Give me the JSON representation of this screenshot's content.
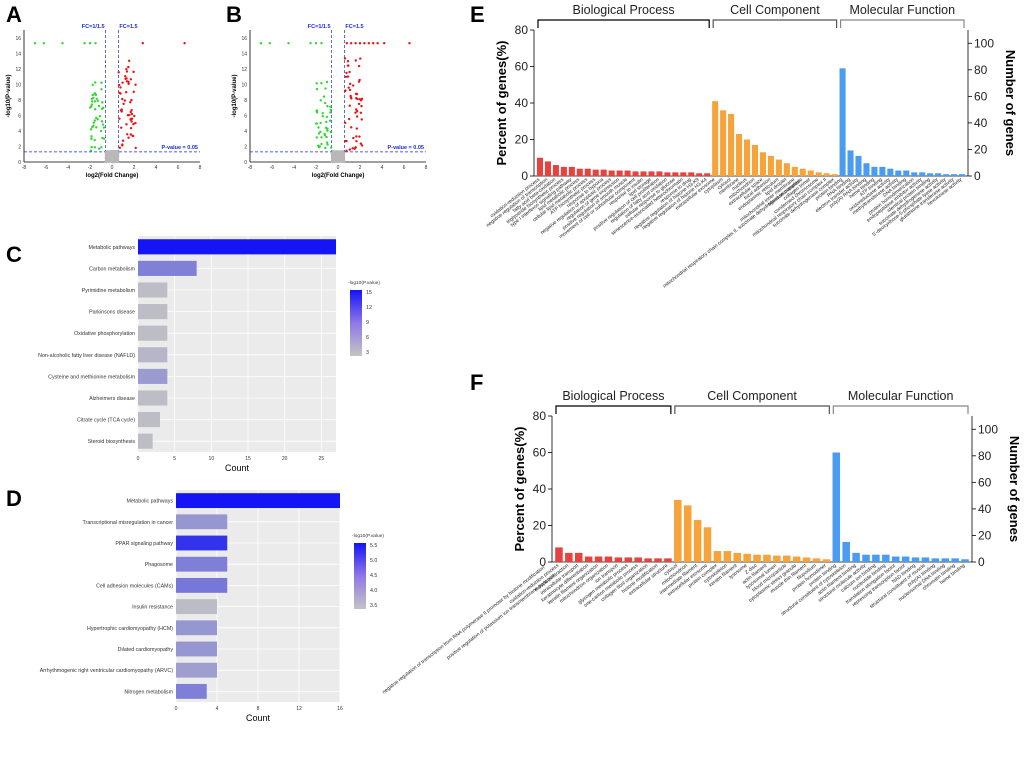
{
  "figure": {
    "panels": [
      "A",
      "B",
      "C",
      "D",
      "E",
      "F"
    ]
  },
  "chart_data": [
    {
      "panel": "A",
      "type": "scatter",
      "title": "",
      "xlabel": "log2(Fold Change)",
      "ylabel": "-log10(P-value)",
      "xlim": [
        -8,
        8
      ],
      "ylim": [
        0,
        17
      ],
      "xticks": [
        "-8",
        "-6",
        "-4",
        "-2",
        "0",
        "2",
        "4",
        "6",
        "8"
      ],
      "yticks": [
        "0",
        "2",
        "4",
        "6",
        "8",
        "10",
        "12",
        "14",
        "16"
      ],
      "fc_labels": [
        "FC=1/1.5",
        "FC=1.5"
      ],
      "fc_lines": [
        -0.585,
        0.585
      ],
      "pvalue_label": "P-value = 0.05",
      "pvalue_line": 1.3,
      "seed": 11
    },
    {
      "panel": "B",
      "type": "scatter",
      "title": "",
      "xlabel": "log2(Fold Change)",
      "ylabel": "-log10(P-value)",
      "xlim": [
        -8,
        8
      ],
      "ylim": [
        0,
        17
      ],
      "xticks": [
        "-8",
        "-6",
        "-4",
        "-2",
        "0",
        "2",
        "4",
        "6",
        "8"
      ],
      "yticks": [
        "0",
        "2",
        "4",
        "6",
        "8",
        "10",
        "12",
        "14",
        "16"
      ],
      "fc_labels": [
        "FC=1/1.5",
        "FC=1.5"
      ],
      "fc_lines": [
        -0.585,
        0.585
      ],
      "pvalue_label": "P-value = 0.05",
      "pvalue_line": 1.3,
      "seed": 29
    },
    {
      "panel": "C",
      "type": "bar",
      "orientation": "horizontal",
      "xlabel": "Count",
      "xlim": [
        0,
        27
      ],
      "xticks": [
        0,
        5,
        10,
        15,
        20,
        25
      ],
      "categories": [
        "Metabolic pathways",
        "Carbon metabolism",
        "Pyrimidine metabolism",
        "Parkinsons disease",
        "Oxidative phosphorylation",
        "Non-alcoholic fatty liver disease (NAFLD)",
        "Cysteine and methionine metabolism",
        "Alzheimers disease",
        "Citrate cycle (TCA cycle)",
        "Steroid biosynthesis"
      ],
      "values": [
        27,
        8,
        4,
        4,
        4,
        4,
        4,
        4,
        3,
        2
      ],
      "color_values": [
        16,
        8,
        3.5,
        3.5,
        3.5,
        4,
        6,
        3.5,
        3.5,
        3.5
      ],
      "legend_title": "-log10(P.value)",
      "legend_ticks": [
        "15",
        "12",
        "9",
        "6",
        "3"
      ],
      "legend_range": [
        3,
        16
      ]
    },
    {
      "panel": "D",
      "type": "bar",
      "orientation": "horizontal",
      "xlabel": "Count",
      "xlim": [
        0,
        16
      ],
      "xticks": [
        0,
        4,
        8,
        12,
        16
      ],
      "categories": [
        "Metabolic pathways",
        "Transcriptional misregulation in cancer",
        "PPAR signaling pathway",
        "Phagosome",
        "Cell adhesion molecules (CAMs)",
        "Insulin resistance",
        "Hypertrophic cardiomyopathy (HCM)",
        "Dilated cardiomyopathy",
        "Arrhythmogenic right ventricular cardiomyopathy (ARVC)",
        "Nitrogen metabolism"
      ],
      "values": [
        16,
        5,
        5,
        5,
        5,
        4,
        4,
        4,
        4,
        3
      ],
      "color_values": [
        5.6,
        3.9,
        5.2,
        4.2,
        4.3,
        3.4,
        3.9,
        3.9,
        3.8,
        4.2
      ],
      "legend_title": "-log10(P.value)",
      "legend_ticks": [
        "5.5",
        "5.0",
        "4.5",
        "4.0",
        "3.5"
      ],
      "legend_range": [
        3.3,
        5.6
      ]
    },
    {
      "panel": "E",
      "type": "bar",
      "ylabel": "Percent of genes(%)",
      "y2label": "Number of genes",
      "ylim": [
        0,
        80
      ],
      "y2lim": [
        0,
        110
      ],
      "yticks": [
        "0",
        "20",
        "40",
        "60",
        "80"
      ],
      "y2ticks": [
        "0",
        "20",
        "40",
        "60",
        "80",
        "100"
      ],
      "groups": [
        "Biological Process",
        "Cell Component",
        "Molecular Function"
      ],
      "group_colors": [
        "#e8423f",
        "#f5a33a",
        "#4a9cf0"
      ],
      "series": [
        {
          "name": "Biological Process",
          "categories": [
            "oxidation-reduction process",
            "negative regulation of transcription",
            "fatty acid beta-oxidation",
            "triglyceride biosynthetic process",
            "type I interferon signaling pathway",
            "lipid metabolic process",
            "cellular lipid metabolic process",
            "ATP biosynthetic process",
            "response to hypoxia",
            "negative regulation of apoptotic process",
            "regulation of gene expression",
            "positive regulation of smooth muscle",
            "movement of cell or subcellular component",
            "response to insulin",
            "lipid storage",
            "positive regulation of cell proliferation",
            "regulation of fatty acid oxidation",
            "cellular response to glucose",
            "senescence-associated heterochromatin",
            "response to drug",
            "negative regulation of histone H3-K9",
            "negative regulation of histone H3-K4"
          ],
          "values": [
            10,
            8,
            6,
            5,
            5,
            4,
            4,
            3.5,
            3.5,
            3,
            3,
            3,
            2.5,
            2.5,
            2.5,
            2.5,
            2,
            2,
            2,
            2,
            1.5,
            1.5
          ]
        },
        {
          "name": "Cell Component",
          "categories": [
            "extracellular exosome",
            "cytoplasm",
            "cytosol",
            "membrane",
            "nucleus",
            "mitochondrion",
            "extracellular space",
            "focal adhesion",
            "endoplasmic reticulum",
            "lipid droplet",
            "mitochondrial inner membrane",
            "blood microparticle",
            "collagen trimer",
            "condensed chromosome",
            "mitochondrial respiratory chain complex II",
            "succinate dehydrogenase complex"
          ],
          "values": [
            41,
            36,
            34,
            23,
            20,
            17,
            13,
            11,
            9,
            7,
            5,
            4,
            3,
            2,
            1.5,
            1
          ]
        },
        {
          "name": "Molecular Function",
          "categories": [
            "protein binding",
            "RNA binding",
            "electron transfer activity",
            "poly(A) RNA binding",
            "heme binding",
            "ATP binding",
            "oxidoreductase activity",
            "methyltransferase activity",
            "DNA binding",
            "protein homodimerization",
            "endopeptidase inhibitor activity",
            "identical protein binding",
            "succinate dehydrogenase activity",
            "5'-deoxyribose-5-phosphate lyase activity",
            "glutathione transferase activity",
            "hexokinase activity"
          ],
          "values": [
            59,
            14,
            11,
            7,
            5,
            5,
            4,
            3,
            3,
            2,
            2,
            1.5,
            1.5,
            1,
            1,
            1
          ]
        }
      ],
      "long_labels": [
        "mitochondrial respiratory chain complex II, succinate dehydrogenase complex"
      ]
    },
    {
      "panel": "F",
      "type": "bar",
      "ylabel": "Percent of genes(%)",
      "y2label": "Number of genes",
      "ylim": [
        0,
        80
      ],
      "y2lim": [
        0,
        110
      ],
      "yticks": [
        "0",
        "20",
        "40",
        "60",
        "80"
      ],
      "y2ticks": [
        "0",
        "20",
        "40",
        "60",
        "80",
        "100"
      ],
      "groups": [
        "Biological Process",
        "Cell Component",
        "Molecular Function"
      ],
      "group_colors": [
        "#e8423f",
        "#f5a33a",
        "#4a9cf0"
      ],
      "series": [
        {
          "name": "Biological Process",
          "categories": [
            "oxidation-reduction process",
            "muscle contraction",
            "intracellular transport",
            "keratinocyte differentiation",
            "keratin filament organization",
            "mitochondrion organization",
            "ion transport",
            "glycogen metabolic process",
            "one-carbon metabolic process",
            "collagen fibril organization",
            "histone modification",
            "extracellular structure"
          ],
          "values": [
            8,
            5,
            5,
            3,
            3,
            3,
            2.5,
            2.5,
            2.5,
            2,
            2,
            2
          ]
        },
        {
          "name": "Cell Component",
          "categories": [
            "cytosol",
            "mitochondrion",
            "intermediate filament",
            "extracellular exosome",
            "protein complex",
            "cytoskeleton",
            "keratin filament",
            "lysosome",
            "Z disc",
            "actin filament",
            "lysosomal lumen",
            "blood microparticle",
            "cytoplasmic stress granule",
            "muscle thin filament",
            "filopodium",
            "protein homodimer"
          ],
          "values": [
            34,
            31,
            23,
            19,
            6,
            6,
            5,
            4.5,
            4,
            4,
            3.5,
            3.5,
            3,
            2.5,
            2,
            1.5
          ]
        },
        {
          "name": "Molecular Function",
          "categories": [
            "protein binding",
            "structural constituent of cytoskeleton",
            "actin filament binding",
            "structural molecule activity",
            "calcium ion binding",
            "nucleotide binding",
            "translation elongation factor",
            "repressing transcription factor",
            "NAD binding",
            "structural constituent of muscle",
            "poly(A) binding",
            "nucleosomal DNA binding",
            "chromatin binding",
            "heme binding"
          ],
          "values": [
            60,
            11,
            5,
            4,
            4,
            4,
            3,
            3,
            2.5,
            2.5,
            2,
            2,
            2,
            1.5
          ]
        }
      ],
      "long_labels": [
        "negative regulation of transcription from RNA polymerase II promoter by histone modification",
        "positive regulation of potassium ion transmembrane transport"
      ]
    }
  ]
}
